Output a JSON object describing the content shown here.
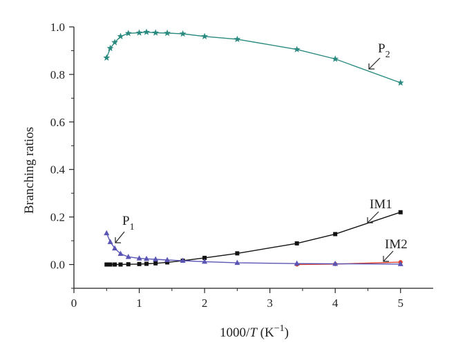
{
  "chart_data": {
    "type": "line",
    "title": "",
    "xlabel": {
      "prefix": "1000/",
      "var": "T",
      "unit_open": " (K",
      "unit_exp": "−1",
      "unit_close": ")"
    },
    "ylabel": "Branching ratios",
    "xlim": [
      0,
      5.5
    ],
    "ylim": [
      -0.1,
      1.0
    ],
    "xticks": [
      "0",
      "1",
      "2",
      "3",
      "4",
      "5"
    ],
    "yticks": [
      "0.0",
      "0.2",
      "0.4",
      "0.6",
      "0.8",
      "1.0"
    ],
    "grid": false,
    "series": [
      {
        "name": "P2",
        "label_main": "P",
        "label_sub": "2",
        "color": "#2a8a80",
        "marker": "star",
        "x": [
          0.5,
          0.556,
          0.625,
          0.714,
          0.833,
          1.0,
          1.111,
          1.25,
          1.429,
          1.667,
          2.0,
          2.5,
          3.413,
          4.0,
          5.0
        ],
        "y": [
          0.87,
          0.91,
          0.935,
          0.96,
          0.973,
          0.975,
          0.978,
          0.975,
          0.974,
          0.971,
          0.96,
          0.948,
          0.905,
          0.865,
          0.765
        ]
      },
      {
        "name": "P1",
        "label_main": "P",
        "label_sub": "1",
        "color": "#5a54b4",
        "marker": "triangle",
        "x": [
          0.5,
          0.556,
          0.625,
          0.714,
          0.833,
          1.0,
          1.111,
          1.25,
          1.429,
          1.667,
          2.0,
          2.5,
          3.413,
          4.0,
          5.0
        ],
        "y": [
          0.132,
          0.095,
          0.068,
          0.045,
          0.032,
          0.026,
          0.024,
          0.022,
          0.019,
          0.016,
          0.012,
          0.007,
          0.004,
          0.003,
          0.002
        ]
      },
      {
        "name": "IM1",
        "label_main": "IM1",
        "label_sub": "",
        "color": "#111111",
        "marker": "square",
        "x": [
          0.5,
          0.556,
          0.625,
          0.714,
          0.833,
          1.0,
          1.111,
          1.25,
          1.429,
          1.667,
          2.0,
          2.5,
          3.413,
          4.0,
          5.0
        ],
        "y": [
          0.0,
          0.0,
          0.0,
          0.0,
          0.001,
          0.002,
          0.003,
          0.005,
          0.009,
          0.016,
          0.028,
          0.047,
          0.089,
          0.128,
          0.22
        ]
      },
      {
        "name": "IM2",
        "label_main": "IM2",
        "label_sub": "",
        "color": "#e0402a",
        "marker": "circle",
        "x": [
          3.413,
          4.0,
          5.0
        ],
        "y": [
          0.0,
          0.002,
          0.01
        ]
      }
    ]
  }
}
